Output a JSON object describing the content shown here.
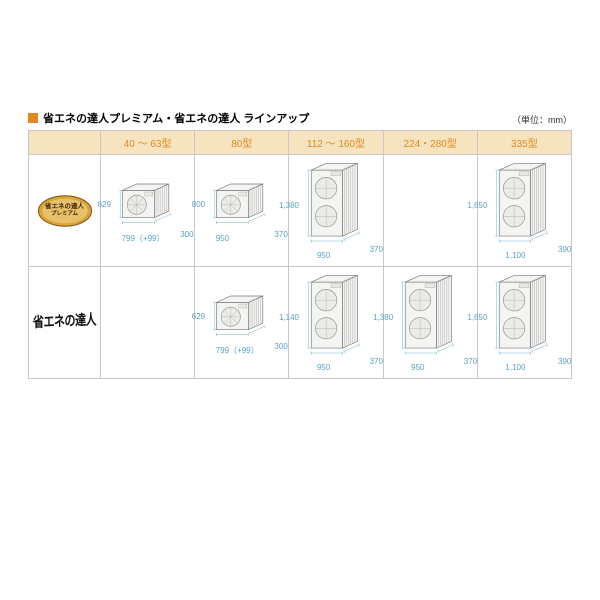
{
  "accent_color": "#e08a1e",
  "header_bg": "#f6e4c0",
  "title_text": "省エネの達人プレミアム・省エネの達人 ラインアップ",
  "unit_label": "（単位：mm）",
  "columns": [
    "40 ～ 63型",
    "80型",
    "112 ～ 160型",
    "224・280型",
    "335型"
  ],
  "rows": {
    "premium": {
      "label_big": "省エネの達人",
      "label_small": "プレミアム",
      "cells": [
        {
          "type": "single",
          "h": "629",
          "w": "799（+99）",
          "d": "300"
        },
        {
          "type": "single",
          "h": "800",
          "w": "950",
          "d": "370"
        },
        {
          "type": "double",
          "h": "1,380",
          "w": "950",
          "d": "370"
        },
        null,
        {
          "type": "double",
          "h": "1,650",
          "w": "1,100",
          "d": "390"
        }
      ]
    },
    "tatsujin": {
      "label": "省エネの達人",
      "cells": [
        null,
        {
          "type": "single",
          "h": "629",
          "w": "799（+99）",
          "d": "300"
        },
        {
          "type": "double",
          "h": "1,140",
          "w": "950",
          "d": "370"
        },
        {
          "type": "double",
          "h": "1,380",
          "w": "950",
          "d": "370"
        },
        {
          "type": "double",
          "h": "1,650",
          "w": "1,100",
          "d": "390"
        }
      ]
    }
  }
}
